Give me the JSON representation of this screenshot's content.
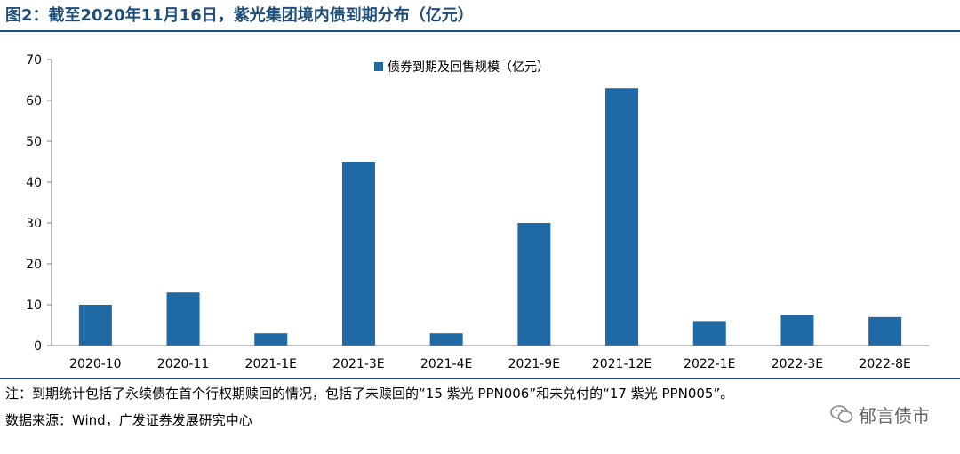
{
  "header": {
    "title": "图2：截至2020年11月16日，紫光集团境内债到期分布（亿元）"
  },
  "footer": {
    "note": "注：到期统计包括了永续债在首个行权期赎回的情况，包括了未赎回的“15 紫光 PPN006”和未兑付的“17 紫光 PPN005”。",
    "source": "数据来源：Wind，广发证券发展研究中心",
    "watermark": "郁言债市"
  },
  "colors": {
    "bar": "#1F6AA5",
    "rule": "#1F4E79",
    "axis": "#808080"
  },
  "chart_data": {
    "type": "bar",
    "categories": [
      "2020-10",
      "2020-11",
      "2021-1E",
      "2021-3E",
      "2021-4E",
      "2021-9E",
      "2021-12E",
      "2022-1E",
      "2022-3E",
      "2022-8E"
    ],
    "series": [
      {
        "name": "债券到期及回售规模（亿元）",
        "values": [
          10,
          13,
          3,
          45,
          3,
          30,
          63,
          6,
          7.5,
          7
        ]
      }
    ],
    "ylim": [
      0,
      70
    ],
    "yticks": [
      0,
      10,
      20,
      30,
      40,
      50,
      60,
      70
    ],
    "grid": false,
    "legend_position": "top-center"
  }
}
